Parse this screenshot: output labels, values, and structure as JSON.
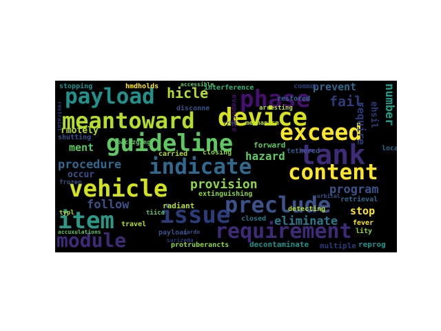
{
  "palette": {
    "purple": "#46106f",
    "indigo": "#3b528b",
    "blue": "#31688e",
    "teal": "#21918c",
    "green": "#35b779",
    "lime": "#5ec962",
    "yellow": "#fde725",
    "darkblue": "#2c3b7a",
    "deep": "#3e2b78"
  },
  "words": [
    {
      "t": "payload",
      "c": "#21918c"
    },
    {
      "t": "phase",
      "c": "#46106f"
    },
    {
      "t": "meantoward",
      "c": "#b5de2b"
    },
    {
      "t": "device",
      "c": "#d8e219"
    },
    {
      "t": "guideline",
      "c": "#5ec962"
    },
    {
      "t": "exceed",
      "c": "#fde725"
    },
    {
      "t": "tank",
      "c": "#3e2b78"
    },
    {
      "t": "indicate",
      "c": "#31688e"
    },
    {
      "t": "content",
      "c": "#fde725"
    },
    {
      "t": "vehicle",
      "c": "#d2e21b"
    },
    {
      "t": "preclude",
      "c": "#3b528b"
    },
    {
      "t": "item",
      "c": "#2a9a86"
    },
    {
      "t": "issue",
      "c": "#2c3b7a"
    },
    {
      "t": "requirement",
      "c": "#3e2b78"
    },
    {
      "t": "module",
      "c": "#3e2b78"
    },
    {
      "t": "hicle",
      "c": "#b5de2b"
    },
    {
      "t": "fail",
      "c": "#2c3b7a"
    },
    {
      "t": "prevent",
      "c": "#31688e"
    },
    {
      "t": "number",
      "c": "#1e9d89"
    },
    {
      "t": "require",
      "c": "#2c3b7a"
    },
    {
      "t": "procedure",
      "c": "#31688e"
    },
    {
      "t": "hazard",
      "c": "#5ec962"
    },
    {
      "t": "provision",
      "c": "#8fd744"
    },
    {
      "t": "program",
      "c": "#3b528b"
    },
    {
      "t": "follow",
      "c": "#3b528b"
    },
    {
      "t": "eliminate",
      "c": "#2a788e"
    },
    {
      "t": "stop",
      "c": "#fde725"
    },
    {
      "t": "ment",
      "c": "#5ec962"
    },
    {
      "t": "occur",
      "c": "#3b528b"
    },
    {
      "t": "rmotely",
      "c": "#b5de2b"
    },
    {
      "t": "shutting",
      "c": "#3b528b"
    },
    {
      "t": "stopping",
      "c": "#21918c"
    },
    {
      "t": "hmdholds",
      "c": "#fde725"
    },
    {
      "t": "interference",
      "c": "#35b779"
    },
    {
      "t": "disconne",
      "c": "#3b528b"
    },
    {
      "t": "evaporate",
      "c": "#46106f"
    },
    {
      "t": "forward",
      "c": "#5ec962"
    },
    {
      "t": "closing",
      "c": "#8fd744"
    },
    {
      "t": "carried",
      "c": "#b5de2b"
    },
    {
      "t": "radiant",
      "c": "#b5de2b"
    },
    {
      "t": "extinguishing",
      "c": "#8fd744"
    },
    {
      "t": "detecting",
      "c": "#b5de2b"
    },
    {
      "t": "retrieval",
      "c": "#31688e"
    },
    {
      "t": "fever",
      "c": "#fde725"
    },
    {
      "t": "lity",
      "c": "#8fd744"
    },
    {
      "t": "decontaminate",
      "c": "#21918c"
    },
    {
      "t": "multiple",
      "c": "#2c3b7a"
    },
    {
      "t": "reprog",
      "c": "#21918c"
    },
    {
      "t": "protruberancts",
      "c": "#8fd744"
    },
    {
      "t": "payloai",
      "c": "#3b528b"
    },
    {
      "t": "closed",
      "c": "#2a788e"
    },
    {
      "t": "travel",
      "c": "#b5de2b"
    },
    {
      "t": "accuxulations",
      "c": "#5ec962"
    },
    {
      "t": "typl",
      "c": "#b5de2b"
    },
    {
      "t": "local",
      "c": "#31688e"
    },
    {
      "t": "frozen",
      "c": "#2c3b7a"
    },
    {
      "t": "common",
      "c": "#31688e"
    },
    {
      "t": "restored",
      "c": "#b5de2b"
    },
    {
      "t": "arresting",
      "c": "#b5de2b"
    },
    {
      "t": "mechanism",
      "c": "#3b528b"
    },
    {
      "t": "tethered",
      "c": "#5ec962"
    },
    {
      "t": "tiica",
      "c": "#3b528b"
    },
    {
      "t": "packzging",
      "c": "#5ec962"
    },
    {
      "t": "accessible",
      "c": "#5ec962"
    },
    {
      "t": "ehsil",
      "c": "#2c3b7a"
    },
    {
      "t": "surizeda",
      "c": "#2c3b7a"
    },
    {
      "t": "cardo",
      "c": "#3b528b"
    },
    {
      "t": "rrho",
      "c": "#3b528b"
    },
    {
      "t": "restraint",
      "c": "#2c3b7a"
    },
    {
      "t": "orbital",
      "c": "#3b528b"
    }
  ]
}
